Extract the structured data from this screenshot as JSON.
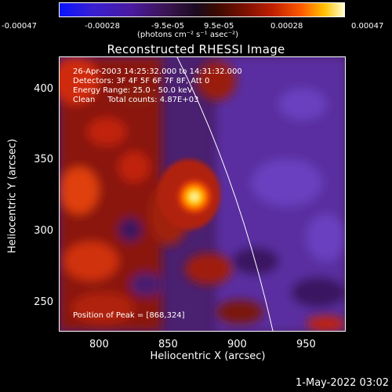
{
  "colorbar": {
    "ticks": [
      "-0.00047",
      "-0.00028",
      "-9.5e-05",
      "9.5e-05",
      "0.00028",
      "0.00047"
    ],
    "units": "(photons cm⁻² s⁻¹ asec⁻²)"
  },
  "title": "Reconstructed RHESSI Image",
  "info": {
    "time_range": "26-Apr-2003 14:25:32.000 to 14:31:32.000",
    "detectors": "Detectors: 3F 4F 5F 6F 7F 8F, Att 0",
    "energy_range": "Energy Range: 25.0 - 50.0 keV",
    "clean_counts": "Clean     Total counts: 4.87E+03",
    "peak_position": "Position of Peak = [868,324]"
  },
  "axes": {
    "xlabel": "Heliocentric X (arcsec)",
    "ylabel": "Heliocentric Y (arcsec)",
    "xticks": [
      "800",
      "850",
      "900",
      "950"
    ],
    "yticks": [
      "400",
      "350",
      "300",
      "250"
    ]
  },
  "timestamp": "1-May-2022 03:02"
}
